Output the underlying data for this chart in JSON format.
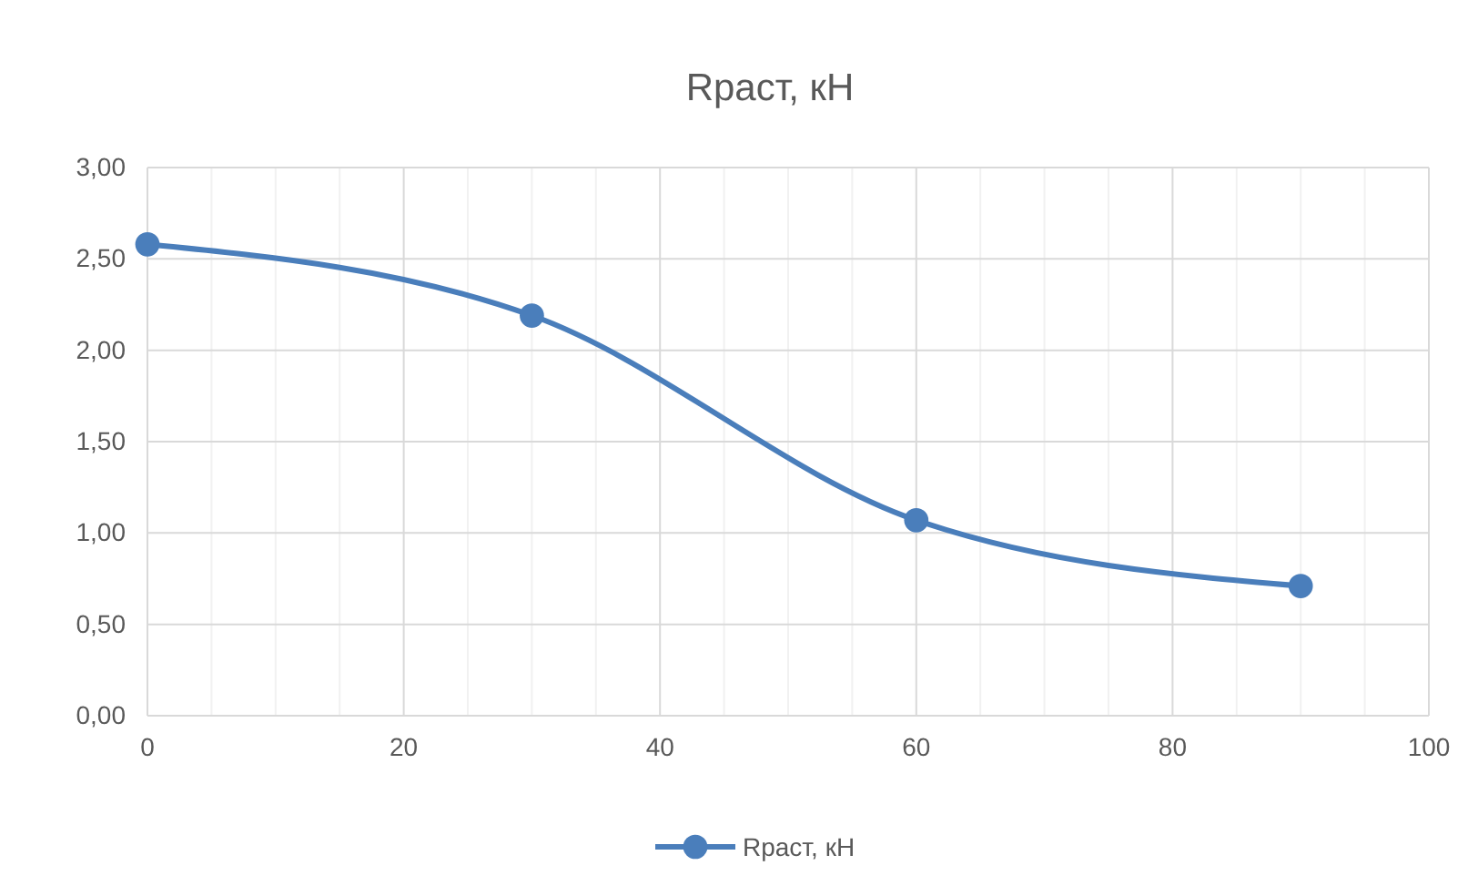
{
  "chart_data": {
    "type": "line",
    "title": "Rраст, кН",
    "x": [
      0,
      30,
      60,
      90
    ],
    "series": [
      {
        "name": "Rраст, кН",
        "color": "#4a7ebb",
        "values": [
          2.58,
          2.19,
          1.07,
          0.71
        ]
      }
    ],
    "xlim": [
      0,
      100
    ],
    "xticks": [
      0,
      {
        "value": 5,
        "label": null
      },
      {
        "value": 10,
        "label": null
      },
      {
        "value": 15,
        "label": null
      },
      20,
      {
        "value": 25,
        "label": null
      },
      {
        "value": 30,
        "label": null
      },
      {
        "value": 35,
        "label": null
      },
      40,
      {
        "value": 45,
        "label": null
      },
      {
        "value": 50,
        "label": null
      },
      {
        "value": 55,
        "label": null
      },
      60,
      {
        "value": 65,
        "label": null
      },
      {
        "value": 70,
        "label": null
      },
      {
        "value": 75,
        "label": null
      },
      80,
      {
        "value": 85,
        "label": null
      },
      {
        "value": 90,
        "label": null
      },
      {
        "value": 95,
        "label": null
      },
      100
    ],
    "ylim": [
      0,
      3
    ],
    "yticks": [
      {
        "value": 0,
        "label": "0,00"
      },
      {
        "value": 0.5,
        "label": "0,50"
      },
      {
        "value": 1,
        "label": "1,00"
      },
      {
        "value": 1.5,
        "label": "1,50"
      },
      {
        "value": 2,
        "label": "2,00"
      },
      {
        "value": 2.5,
        "label": "2,50"
      },
      {
        "value": 3,
        "label": "3,00"
      }
    ],
    "grid": true,
    "legend": "bottom",
    "marker": "circle",
    "line_style": "solid"
  }
}
